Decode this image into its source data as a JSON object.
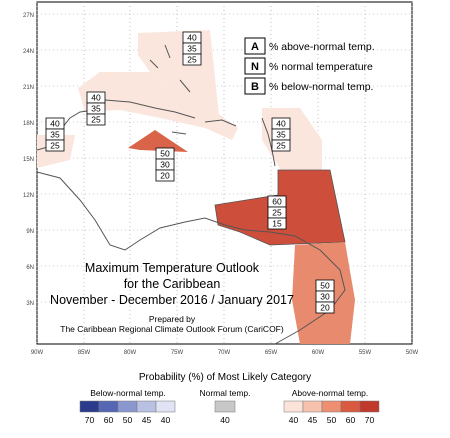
{
  "map": {
    "title_lines": [
      "Maximum Temperature Outlook",
      "for the Caribbean",
      "November - December 2016 / January 2017"
    ],
    "credit_lines": [
      "Prepared by",
      "The Caribbean Regional Climate Outlook Forum (CariCOF)"
    ],
    "lat_labels": [
      "27N",
      "24N",
      "21N",
      "18N",
      "15N",
      "12N",
      "9N",
      "6N",
      "3N"
    ],
    "lon_labels": [
      "90W",
      "85W",
      "80W",
      "75W",
      "70W",
      "65W",
      "60W",
      "55W",
      "50W"
    ]
  },
  "legend_key": [
    {
      "letter": "A",
      "text": "% above-normal temp."
    },
    {
      "letter": "N",
      "text": "% normal temperature"
    },
    {
      "letter": "B",
      "text": "% below-normal temp."
    }
  ],
  "regions": [
    {
      "name": "bahamas",
      "above": "40",
      "normal": "35",
      "below": "25"
    },
    {
      "name": "cuba",
      "above": "40",
      "normal": "35",
      "below": "25"
    },
    {
      "name": "belize-west",
      "above": "40",
      "normal": "35",
      "below": "25"
    },
    {
      "name": "lesser-antilles-north",
      "above": "40",
      "normal": "35",
      "below": "25"
    },
    {
      "name": "jamaica-area",
      "above": "50",
      "normal": "30",
      "below": "20"
    },
    {
      "name": "southern-caribbean",
      "above": "60",
      "normal": "25",
      "below": "15"
    },
    {
      "name": "guianas",
      "above": "50",
      "normal": "30",
      "below": "20"
    }
  ],
  "colorbar": {
    "title": "Probability (%) of Most Likely Category",
    "below": {
      "label": "Below-normal temp.",
      "ticks": [
        "70",
        "60",
        "50",
        "45",
        "40"
      ],
      "colors": [
        "#2b3a8c",
        "#5567b4",
        "#8b98d0",
        "#b8c0e4",
        "#dfe3f4"
      ]
    },
    "normal": {
      "label": "Normal temp.",
      "ticks": [
        "40"
      ],
      "colors": [
        "#c8c8c8"
      ]
    },
    "above": {
      "label": "Above-normal temp.",
      "ticks": [
        "40",
        "45",
        "50",
        "60",
        "70"
      ],
      "colors": [
        "#fbe3da",
        "#f6c2ae",
        "#ee8f72",
        "#d95a40",
        "#c0392b"
      ]
    }
  }
}
